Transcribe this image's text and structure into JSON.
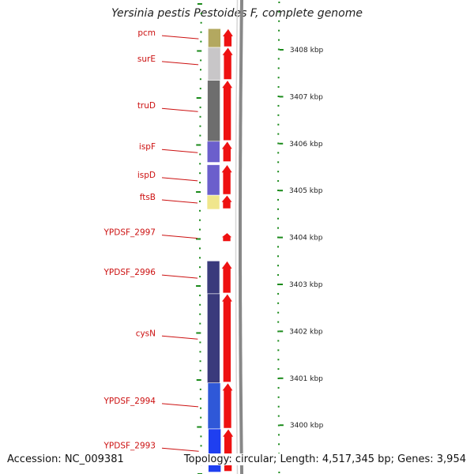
{
  "title": "Yersinia pestis Pestoides F, complete genome",
  "footer": {
    "accession": "Accession: NC_009381",
    "topology": "Topology: circular; Length: 4,517,345 bp; Genes: 3,954"
  },
  "colors": {
    "label": "#cc1111",
    "tick": "#1a8a1a",
    "arrow": "#ee1111",
    "backbone": "#888888"
  },
  "ruler": [
    {
      "kbp": 3408,
      "label": "3408 kbp"
    },
    {
      "kbp": 3407,
      "label": "3407 kbp"
    },
    {
      "kbp": 3406,
      "label": "3406 kbp"
    },
    {
      "kbp": 3405,
      "label": "3405 kbp"
    },
    {
      "kbp": 3404,
      "label": "3404 kbp"
    },
    {
      "kbp": 3403,
      "label": "3403 kbp"
    },
    {
      "kbp": 3402,
      "label": "3402 kbp"
    },
    {
      "kbp": 3401,
      "label": "3401 kbp"
    },
    {
      "kbp": 3400,
      "label": "3400 kbp"
    }
  ],
  "genes": [
    {
      "name": "pcm",
      "start": 3408.05,
      "end": 3408.45,
      "color": "#b3a860"
    },
    {
      "name": "surE",
      "start": 3407.35,
      "end": 3408.05,
      "color": "#c8c6c8"
    },
    {
      "name": "truD",
      "start": 3406.05,
      "end": 3407.35,
      "color": "#6e6e6e"
    },
    {
      "name": "ispF",
      "start": 3405.6,
      "end": 3406.05,
      "color": "#6b5fcc"
    },
    {
      "name": "ispD",
      "start": 3404.9,
      "end": 3405.55,
      "color": "#6b5fcc"
    },
    {
      "name": "ftsB",
      "start": 3404.6,
      "end": 3404.9,
      "color": "#f0e68c"
    },
    {
      "name": "YPDSF_2997",
      "start": 3403.9,
      "end": 3404.1,
      "color": ""
    },
    {
      "name": "YPDSF_2996",
      "start": 3402.8,
      "end": 3403.5,
      "color": "#3a3a7c"
    },
    {
      "name": "cysN",
      "start": 3400.9,
      "end": 3402.8,
      "color": "#3a3a7c"
    },
    {
      "name": "YPDSF_2994",
      "start": 3399.92,
      "end": 3400.9,
      "color": "#2f58d8"
    },
    {
      "name": "YPDSF_2993",
      "start": 3399.0,
      "end": 3399.92,
      "color": "#1f3ff0"
    }
  ]
}
